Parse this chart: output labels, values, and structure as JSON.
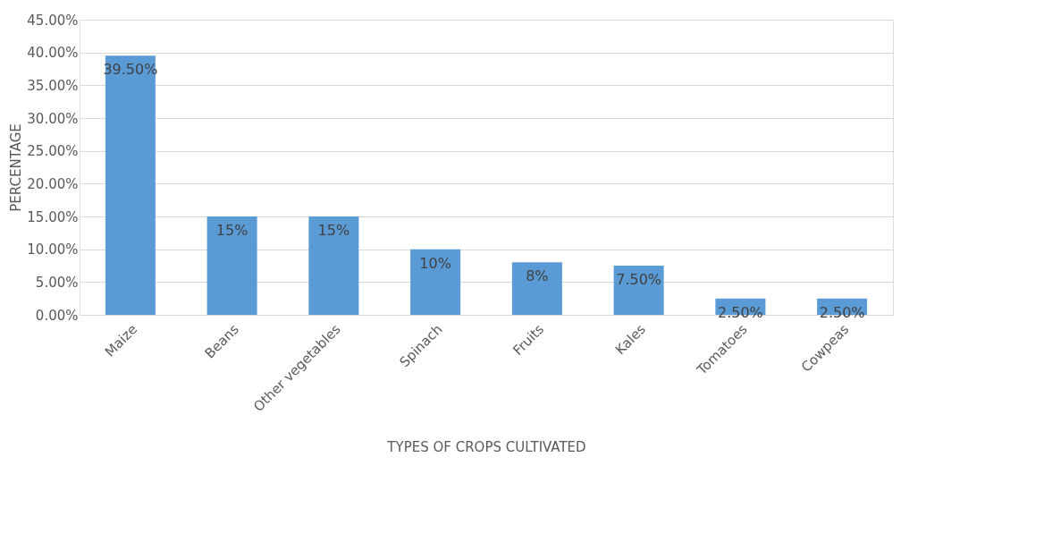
{
  "chart_data": {
    "type": "bar",
    "xlabel": "TYPES OF CROPS CULTIVATED",
    "ylabel": "PERCENTAGE",
    "categories": [
      "Maize",
      "Beans",
      "Other vegetables",
      "Spinach",
      "Fruits",
      "Kales",
      "Tomatoes",
      "Cowpeas"
    ],
    "values": [
      39.5,
      15,
      15,
      10,
      8,
      7.5,
      2.5,
      2.5
    ],
    "value_labels": [
      "39.50%",
      "15%",
      "15%",
      "10%",
      "8%",
      "7.50%",
      "2.50%",
      "2.50%"
    ],
    "color": "#5b9bd5",
    "ylim": [
      0,
      45
    ],
    "yticks": [
      {
        "value": 0,
        "label": "0.00%"
      },
      {
        "value": 5,
        "label": "5.00%"
      },
      {
        "value": 10,
        "label": "10.00%"
      },
      {
        "value": 15,
        "label": "15.00%"
      },
      {
        "value": 20,
        "label": "20.00%"
      },
      {
        "value": 25,
        "label": "25.00%"
      },
      {
        "value": 30,
        "label": "30.00%"
      },
      {
        "value": 35,
        "label": "35.00%"
      },
      {
        "value": 40,
        "label": "40.00%"
      },
      {
        "value": 45,
        "label": "45.00%"
      }
    ],
    "grid": "y"
  }
}
